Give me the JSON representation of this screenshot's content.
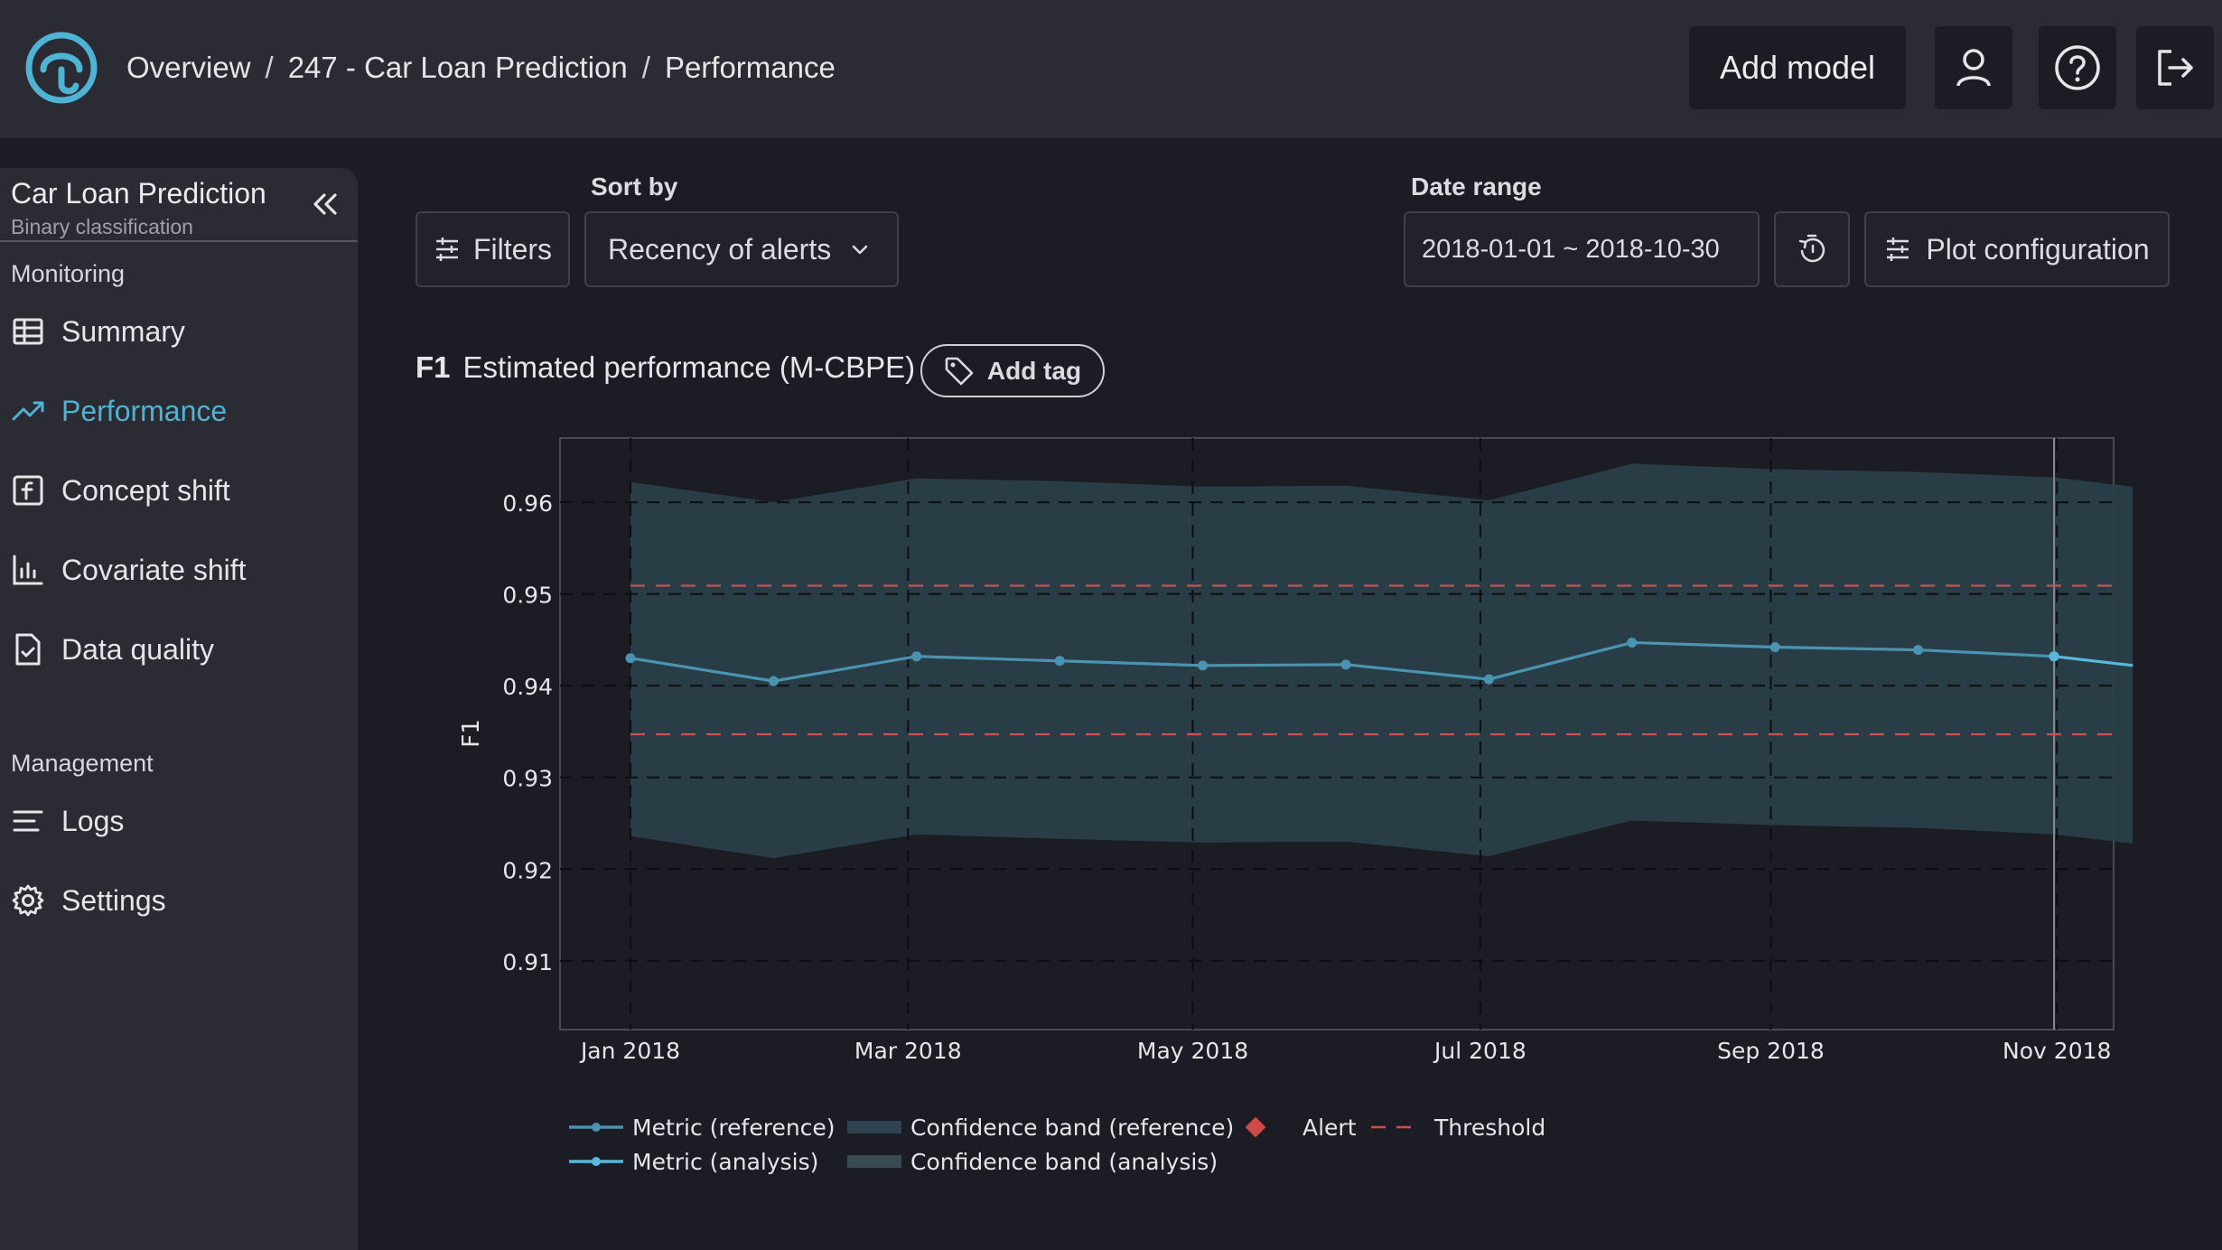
{
  "breadcrumb": {
    "home": "Overview",
    "model": "247 - Car Loan Prediction",
    "page": "Performance"
  },
  "header": {
    "add_model_label": "Add model",
    "icons": [
      "user-icon",
      "help-icon",
      "logout-icon"
    ]
  },
  "sidebar": {
    "model_name": "Car Loan Prediction",
    "model_type": "Binary classification",
    "monitoring_label": "Monitoring",
    "management_label": "Management",
    "monitoring_items": [
      {
        "label": "Summary",
        "icon": "table-icon"
      },
      {
        "label": "Performance",
        "icon": "trending-up-icon",
        "active": true
      },
      {
        "label": "Concept shift",
        "icon": "function-icon"
      },
      {
        "label": "Covariate shift",
        "icon": "bar-chart-icon"
      },
      {
        "label": "Data quality",
        "icon": "file-check-icon"
      }
    ],
    "management_items": [
      {
        "label": "Logs",
        "icon": "lines-icon"
      },
      {
        "label": "Settings",
        "icon": "gear-icon"
      }
    ]
  },
  "controls": {
    "filters_label": "Filters",
    "sort_by_label": "Sort by",
    "sort_value": "Recency of alerts",
    "date_range_label": "Date range",
    "date_range_value": "2018-01-01 ~ 2018-10-30",
    "plot_config_label": "Plot configuration"
  },
  "plot": {
    "metric": "F1",
    "title": "Estimated performance (M-CBPE)",
    "add_tag_label": "Add tag"
  },
  "colors": {
    "accent": "#4fb3d3",
    "reference_line": "#4a94b2",
    "analysis_line": "#5ab8dc",
    "band": "#2a3f4a",
    "threshold": "#c8524d",
    "alert": "#d04a4a"
  },
  "chart_data": {
    "type": "line",
    "ylabel": "F1",
    "xlabel": "",
    "ylim": [
      0.9025,
      0.967
    ],
    "yticks": [
      0.91,
      0.92,
      0.93,
      0.94,
      0.95,
      0.96
    ],
    "xticks": [
      {
        "label": "Jan 2018",
        "month": 0
      },
      {
        "label": "Mar 2018",
        "month": 1.94
      },
      {
        "label": "May 2018",
        "month": 3.93
      },
      {
        "label": "Jul 2018",
        "month": 5.94
      },
      {
        "label": "Sep 2018",
        "month": 7.97
      },
      {
        "label": "Nov 2018",
        "month": 9.97
      }
    ],
    "thresholds": {
      "upper": 0.9509,
      "lower": 0.9347
    },
    "series": [
      {
        "name": "Metric (reference)",
        "x_month": [
          0,
          1,
          2,
          3,
          4,
          5,
          6,
          7,
          8,
          9,
          9.95
        ],
        "values": [
          0.943,
          0.9405,
          0.9432,
          0.9427,
          0.9422,
          0.9423,
          0.9407,
          0.9447,
          0.9442,
          0.9439,
          0.9432
        ],
        "band_upper": [
          0.9622,
          0.96,
          0.9626,
          0.9623,
          0.9617,
          0.9618,
          0.9602,
          0.9642,
          0.9636,
          0.9633,
          0.9627
        ],
        "band_lower": [
          0.9236,
          0.9212,
          0.9238,
          0.9233,
          0.9229,
          0.923,
          0.9214,
          0.9253,
          0.9248,
          0.9245,
          0.9238
        ]
      },
      {
        "name": "Metric (analysis)",
        "x_month": [
          9.95,
          10.5
        ],
        "values": [
          0.9432,
          0.9422
        ],
        "band_upper": [
          0.9627,
          0.9617
        ],
        "band_lower": [
          0.9238,
          0.9228
        ]
      }
    ],
    "legend": [
      {
        "label": "Metric (reference)",
        "kind": "line-ref"
      },
      {
        "label": "Confidence band (reference)",
        "kind": "band-ref"
      },
      {
        "label": "Alert",
        "kind": "alert"
      },
      {
        "label": "Threshold",
        "kind": "threshold"
      },
      {
        "label": "Metric (analysis)",
        "kind": "line-ana"
      },
      {
        "label": "Confidence band (analysis)",
        "kind": "band-ana"
      }
    ]
  }
}
